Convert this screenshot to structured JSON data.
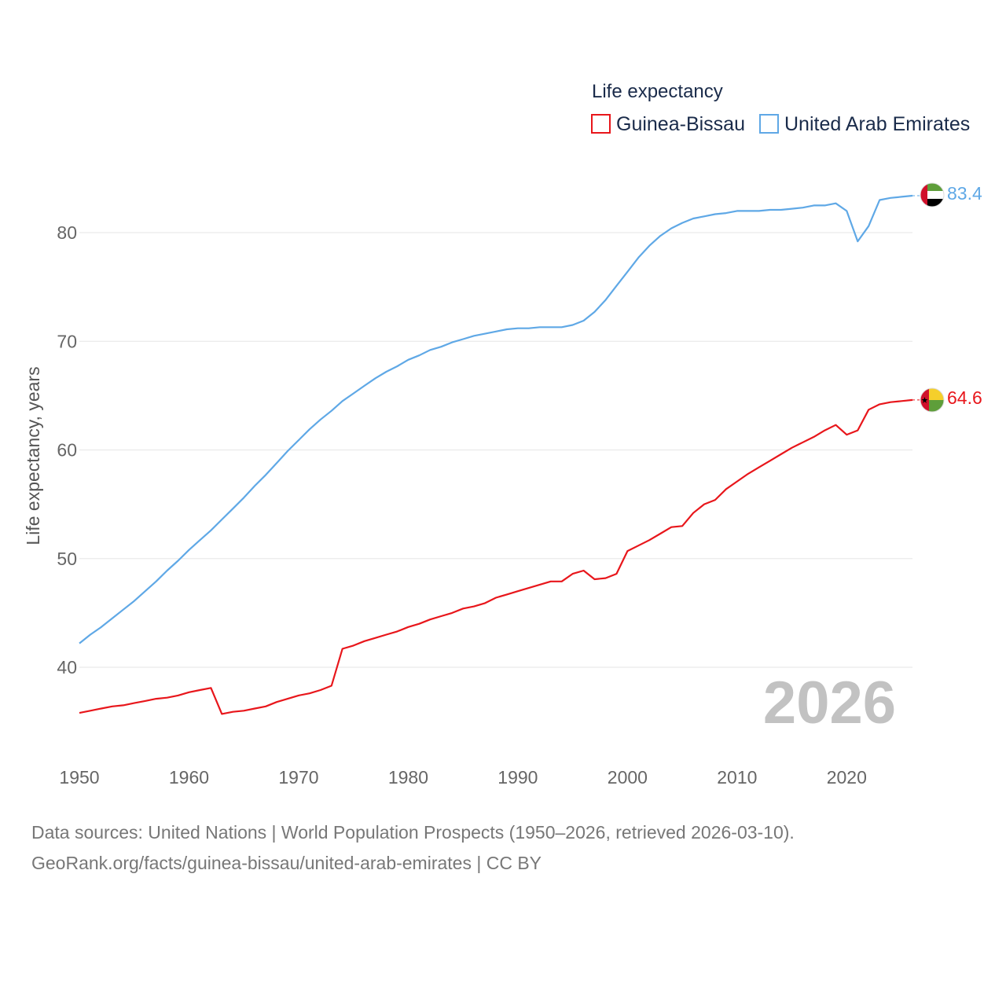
{
  "chart_data": {
    "type": "line",
    "title": "",
    "xlabel": "",
    "ylabel": "Life expectancy, years",
    "xlim": [
      1950,
      2026
    ],
    "ylim": [
      33,
      85
    ],
    "xticks": [
      1950,
      1960,
      1970,
      1980,
      1990,
      2000,
      2010,
      2020
    ],
    "yticks": [
      40,
      50,
      60,
      70,
      80
    ],
    "grid": true,
    "legend": {
      "title": "Life expectancy",
      "position": "top-right"
    },
    "year_label": "2026",
    "series": [
      {
        "name": "Guinea-Bissau",
        "color": "#e8161b",
        "flag_icon": "guinea-bissau-flag-icon",
        "end_label": "64.6",
        "x": [
          1950,
          1951,
          1952,
          1953,
          1954,
          1955,
          1956,
          1957,
          1958,
          1959,
          1960,
          1961,
          1962,
          1963,
          1964,
          1965,
          1966,
          1967,
          1968,
          1969,
          1970,
          1971,
          1972,
          1973,
          1974,
          1975,
          1976,
          1977,
          1978,
          1979,
          1980,
          1981,
          1982,
          1983,
          1984,
          1985,
          1986,
          1987,
          1988,
          1989,
          1990,
          1991,
          1992,
          1993,
          1994,
          1995,
          1996,
          1997,
          1998,
          1999,
          2000,
          2001,
          2002,
          2003,
          2004,
          2005,
          2006,
          2007,
          2008,
          2009,
          2010,
          2011,
          2012,
          2013,
          2014,
          2015,
          2016,
          2017,
          2018,
          2019,
          2020,
          2021,
          2022,
          2023,
          2024,
          2025,
          2026
        ],
        "values": [
          35.8,
          36.0,
          36.2,
          36.4,
          36.5,
          36.7,
          36.9,
          37.1,
          37.2,
          37.4,
          37.7,
          37.9,
          38.1,
          35.7,
          35.9,
          36.0,
          36.2,
          36.4,
          36.8,
          37.1,
          37.4,
          37.6,
          37.9,
          38.3,
          41.7,
          42.0,
          42.4,
          42.7,
          43.0,
          43.3,
          43.7,
          44.0,
          44.4,
          44.7,
          45.0,
          45.4,
          45.6,
          45.9,
          46.4,
          46.7,
          47.0,
          47.3,
          47.6,
          47.9,
          47.9,
          48.6,
          48.9,
          48.1,
          48.2,
          48.6,
          50.7,
          51.2,
          51.7,
          52.3,
          52.9,
          53.0,
          54.2,
          55.0,
          55.4,
          56.4,
          57.1,
          57.8,
          58.4,
          59.0,
          59.6,
          60.2,
          60.7,
          61.2,
          61.8,
          62.3,
          61.4,
          61.8,
          63.7,
          64.2,
          64.4,
          64.5,
          64.6
        ]
      },
      {
        "name": "United Arab Emirates",
        "color": "#5fa8e6",
        "flag_icon": "uae-flag-icon",
        "end_label": "83.4",
        "x": [
          1950,
          1951,
          1952,
          1953,
          1954,
          1955,
          1956,
          1957,
          1958,
          1959,
          1960,
          1961,
          1962,
          1963,
          1964,
          1965,
          1966,
          1967,
          1968,
          1969,
          1970,
          1971,
          1972,
          1973,
          1974,
          1975,
          1976,
          1977,
          1978,
          1979,
          1980,
          1981,
          1982,
          1983,
          1984,
          1985,
          1986,
          1987,
          1988,
          1989,
          1990,
          1991,
          1992,
          1993,
          1994,
          1995,
          1996,
          1997,
          1998,
          1999,
          2000,
          2001,
          2002,
          2003,
          2004,
          2005,
          2006,
          2007,
          2008,
          2009,
          2010,
          2011,
          2012,
          2013,
          2014,
          2015,
          2016,
          2017,
          2018,
          2019,
          2020,
          2021,
          2022,
          2023,
          2024,
          2025,
          2026
        ],
        "values": [
          42.2,
          43.0,
          43.7,
          44.5,
          45.3,
          46.1,
          47.0,
          47.9,
          48.9,
          49.8,
          50.8,
          51.7,
          52.6,
          53.6,
          54.6,
          55.6,
          56.7,
          57.7,
          58.8,
          59.9,
          60.9,
          61.9,
          62.8,
          63.6,
          64.5,
          65.2,
          65.9,
          66.6,
          67.2,
          67.7,
          68.3,
          68.7,
          69.2,
          69.5,
          69.9,
          70.2,
          70.5,
          70.7,
          70.9,
          71.1,
          71.2,
          71.2,
          71.3,
          71.3,
          71.3,
          71.5,
          71.9,
          72.7,
          73.8,
          75.1,
          76.4,
          77.7,
          78.8,
          79.7,
          80.4,
          80.9,
          81.3,
          81.5,
          81.7,
          81.8,
          82.0,
          82.0,
          82.0,
          82.1,
          82.1,
          82.2,
          82.3,
          82.5,
          82.5,
          82.7,
          82.0,
          79.2,
          80.6,
          83.0,
          83.2,
          83.3,
          83.4
        ]
      }
    ]
  },
  "source": {
    "line1": "Data sources: United Nations | World Population Prospects (1950–2026, retrieved 2026-03-10).",
    "line2": "GeoRank.org/facts/guinea-bissau/united-arab-emirates | CC BY"
  }
}
